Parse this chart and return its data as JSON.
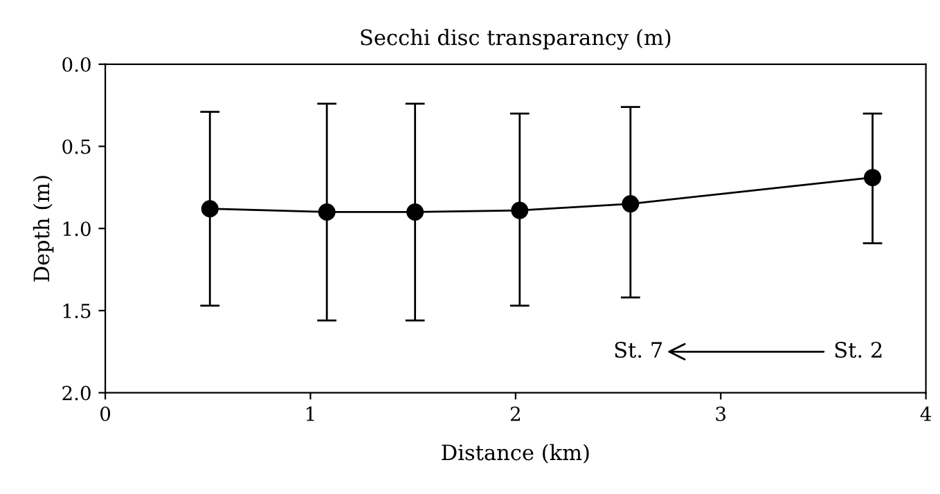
{
  "chart_data": {
    "type": "line",
    "title": "Secchi disc transparancy (m)",
    "xlabel": "Distance (km)",
    "ylabel": "Depth (m)",
    "x": [
      0.51,
      1.08,
      1.51,
      2.02,
      2.56,
      3.74
    ],
    "series": [
      {
        "color": "#000000",
        "values": [
          0.88,
          0.9,
          0.9,
          0.89,
          0.85,
          0.69
        ],
        "errors": [
          [
            0.29,
            1.47
          ],
          [
            0.24,
            1.56
          ],
          [
            0.24,
            1.56
          ],
          [
            0.3,
            1.47
          ],
          [
            0.26,
            1.42
          ],
          [
            0.3,
            1.09
          ]
        ]
      }
    ],
    "xlim": [
      0,
      4
    ],
    "xticks": [
      0,
      1,
      2,
      3,
      4
    ],
    "ylim": [
      2.0,
      0.0
    ],
    "yticks": [
      {
        "value": 0,
        "label": "0.0"
      },
      {
        "value": 0.5,
        "label": "0.5"
      },
      {
        "value": 1,
        "label": "1.0"
      },
      {
        "value": 1.5,
        "label": "1.5"
      },
      {
        "value": 2,
        "label": "2.0"
      }
    ],
    "annotations": [
      "St. 7",
      "St. 2"
    ],
    "marker": "circle",
    "line_style": "solid",
    "grid": false,
    "legend": false
  }
}
